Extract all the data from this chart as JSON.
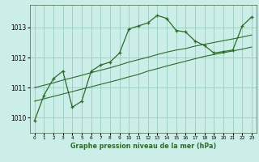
{
  "bg_color": "#cceee8",
  "grid_color": "#99ccbb",
  "line_color": "#2d6a2d",
  "title": "Graphe pression niveau de la mer (hPa)",
  "xlim": [
    -0.5,
    23.5
  ],
  "ylim": [
    1009.5,
    1013.75
  ],
  "yticks": [
    1010,
    1011,
    1012,
    1013
  ],
  "xticks": [
    0,
    1,
    2,
    3,
    4,
    5,
    6,
    7,
    8,
    9,
    10,
    11,
    12,
    13,
    14,
    15,
    16,
    17,
    18,
    19,
    20,
    21,
    22,
    23
  ],
  "line1_x": [
    0,
    1,
    2,
    3,
    4,
    5,
    6,
    7,
    8,
    9,
    10,
    11,
    12,
    13,
    14,
    15,
    16,
    17,
    18,
    19,
    20,
    21,
    22,
    23
  ],
  "line1_y": [
    1009.9,
    1010.75,
    1011.3,
    1011.55,
    1010.35,
    1010.55,
    1011.55,
    1011.75,
    1011.85,
    1012.15,
    1012.95,
    1013.05,
    1013.15,
    1013.4,
    1013.3,
    1012.9,
    1012.85,
    1012.55,
    1012.4,
    1012.15,
    1012.2,
    1012.25,
    1013.05,
    1013.35
  ],
  "line2_x": [
    0,
    1,
    2,
    3,
    4,
    5,
    6,
    7,
    8,
    9,
    10,
    11,
    12,
    13,
    14,
    15,
    16,
    17,
    18,
    19,
    20,
    21,
    22,
    23
  ],
  "line2_y": [
    1011.0,
    1011.08,
    1011.16,
    1011.25,
    1011.33,
    1011.41,
    1011.5,
    1011.58,
    1011.66,
    1011.75,
    1011.85,
    1011.93,
    1012.01,
    1012.1,
    1012.18,
    1012.25,
    1012.3,
    1012.38,
    1012.44,
    1012.5,
    1012.56,
    1012.62,
    1012.68,
    1012.75
  ],
  "line3_x": [
    0,
    1,
    2,
    3,
    4,
    5,
    6,
    7,
    8,
    9,
    10,
    11,
    12,
    13,
    14,
    15,
    16,
    17,
    18,
    19,
    20,
    21,
    22,
    23
  ],
  "line3_y": [
    1010.55,
    1010.63,
    1010.71,
    1010.79,
    1010.87,
    1010.95,
    1011.03,
    1011.11,
    1011.19,
    1011.27,
    1011.36,
    1011.44,
    1011.55,
    1011.63,
    1011.72,
    1011.8,
    1011.88,
    1011.96,
    1012.04,
    1012.1,
    1012.16,
    1012.22,
    1012.28,
    1012.35
  ]
}
